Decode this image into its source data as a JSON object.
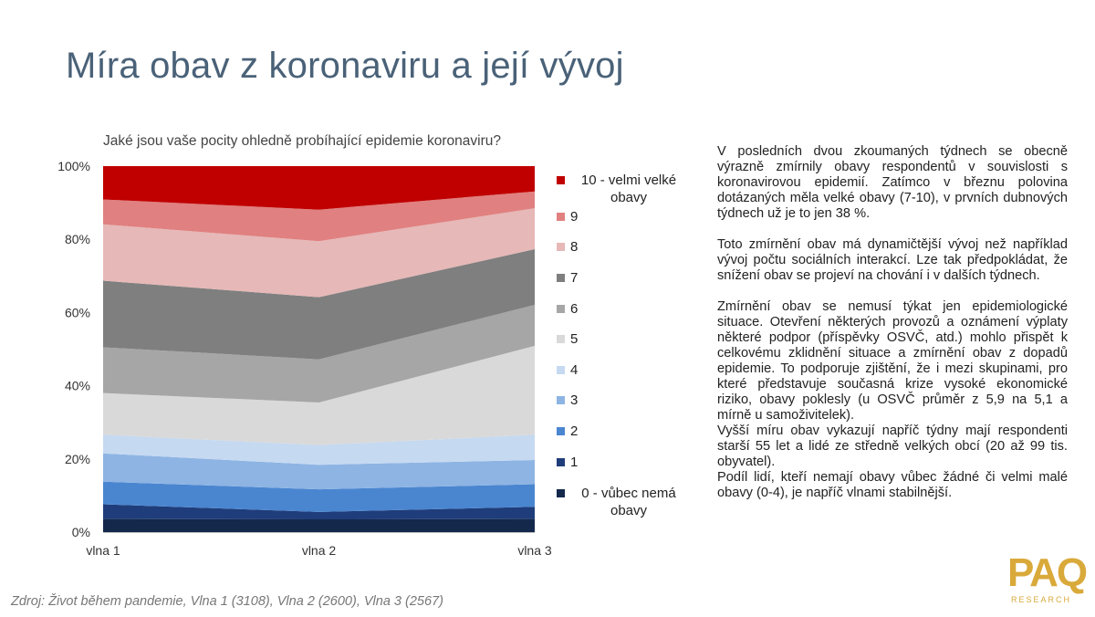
{
  "slide": {
    "title": "Míra obav z koronaviru a její vývoj",
    "source": "Zdroj: Život během pandemie, Vlna 1 (3108), Vlna 2 (2600), Vlna 3 (2567)",
    "logo": {
      "main": "PAQ",
      "sub": "RESEARCH"
    }
  },
  "body_text": {
    "p1": "V posledních dvou zkoumaných týdnech se obecně výrazně zmírnily obavy respondentů v souvislosti s koronavirovou epidemií. Zatímco v březnu polovina dotázaných měla velké obavy (7-10), v prvních dubnových týdnech už je to jen 38 %.",
    "p2": "Toto zmírnění obav má dynamičtější vývoj než například vývoj počtu sociálních interakcí. Lze tak předpokládat, že snížení obav se projeví na chování i v dalších týdnech.",
    "p3": "Zmírnění obav se nemusí týkat jen epidemiologické situace. Otevření některých provozů a oznámení výplaty některé podpor (příspěvky OSVČ, atd.) mohlo přispět k celkovému zklidnění situace a zmírnění obav z dopadů epidemie. To podporuje zjištění, že i mezi skupinami, pro které představuje současná krize vysoké ekonomické riziko, obavy poklesly (u OSVČ průměr z 5,9 na 5,1 a mírně u samoživitelek).",
    "p4": "Vyšší míru obav vykazují napříč týdny mají respondenti starší 55 let a lidé ze středně velkých obcí (20 až 99 tis. obyvatel).",
    "p5": " Podíl lidí, kteří nemají obavy vůbec žádné či velmi malé obavy (0-4), je napříč vlnami stabilnější."
  },
  "chart_data": {
    "type": "area",
    "stacked": true,
    "percent": true,
    "title": "Jaké jsou vaše pocity ohledně probíhající epidemie koronaviru?",
    "categories": [
      "vlna 1",
      "vlna 2",
      "vlna 3"
    ],
    "ylim": [
      0,
      100
    ],
    "yticks": [
      "0%",
      "20%",
      "40%",
      "60%",
      "80%",
      "100%"
    ],
    "grid": false,
    "legend_position": "right",
    "series": [
      {
        "name": "0 - vůbec nemá obavy",
        "color": "#14284b",
        "values": [
          3.6,
          3.5,
          3.6
        ]
      },
      {
        "name": "1",
        "color": "#1f3d7a",
        "values": [
          4.0,
          2.0,
          3.3
        ]
      },
      {
        "name": "2",
        "color": "#4a86d0",
        "values": [
          6.2,
          6.2,
          6.2
        ]
      },
      {
        "name": "3",
        "color": "#8eb4e3",
        "values": [
          7.7,
          6.7,
          6.6
        ]
      },
      {
        "name": "4",
        "color": "#c5d9f1",
        "values": [
          5.1,
          5.4,
          6.9
        ]
      },
      {
        "name": "5",
        "color": "#d9d9d9",
        "values": [
          11.4,
          11.6,
          24.3
        ]
      },
      {
        "name": "6",
        "color": "#a6a6a6",
        "values": [
          12.5,
          11.8,
          11.2
        ]
      },
      {
        "name": "7",
        "color": "#7f7f7f",
        "values": [
          18.2,
          17.0,
          15.2
        ]
      },
      {
        "name": "8",
        "color": "#e6b8b7",
        "values": [
          15.4,
          15.3,
          11.2
        ]
      },
      {
        "name": "9",
        "color": "#e08080",
        "values": [
          6.8,
          8.6,
          4.6
        ]
      },
      {
        "name": "10 - velmi velké obavy",
        "color": "#c00000",
        "values": [
          9.1,
          11.9,
          6.9
        ]
      }
    ]
  }
}
